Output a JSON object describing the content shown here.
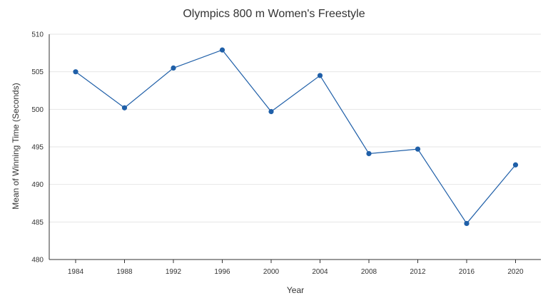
{
  "chart_data": {
    "type": "line",
    "title": "Olympics 800 m Women's Freestyle",
    "xlabel": "Year",
    "ylabel": "Mean of Winning Time (Seconds)",
    "categories": [
      "1984",
      "1988",
      "1992",
      "1996",
      "2000",
      "2004",
      "2008",
      "2012",
      "2016",
      "2020"
    ],
    "series": [
      {
        "values": [
          505.0,
          500.2,
          505.5,
          507.9,
          499.7,
          504.5,
          494.1,
          494.7,
          484.8,
          492.6
        ],
        "color": "#1f5fa8"
      }
    ],
    "ylim": [
      480,
      510
    ],
    "yticks": [
      480,
      485,
      490,
      495,
      500,
      505,
      510
    ],
    "grid": true,
    "legend": "none"
  }
}
